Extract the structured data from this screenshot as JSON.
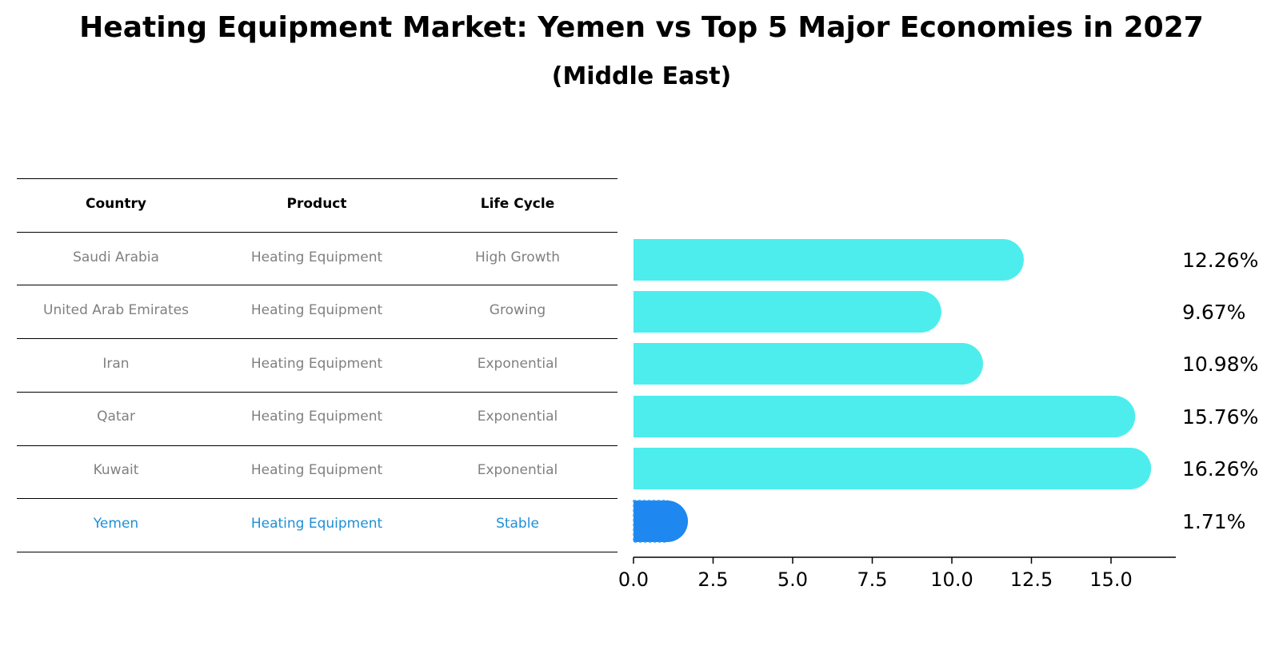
{
  "title": "Heating Equipment Market: Yemen vs Top 5 Major Economies in 2027",
  "subtitle": "(Middle East)",
  "colors": {
    "bar": "#4eeded",
    "highlight_bar": "#1e88f0",
    "highlight_text": "#1f8fd6",
    "muted_text": "#808080"
  },
  "table": {
    "headers": [
      "Country",
      "Product",
      "Life Cycle"
    ],
    "rows": [
      [
        "Saudi Arabia",
        "Heating Equipment",
        "High Growth"
      ],
      [
        "United Arab Emirates",
        "Heating Equipment",
        "Growing"
      ],
      [
        "Iran",
        "Heating Equipment",
        "Exponential"
      ],
      [
        "Qatar",
        "Heating Equipment",
        "Exponential"
      ],
      [
        "Kuwait",
        "Heating Equipment",
        "Exponential"
      ],
      [
        "Yemen",
        "Heating Equipment",
        "Stable"
      ]
    ]
  },
  "chart_data": {
    "type": "bar",
    "orientation": "horizontal",
    "title": "Heating Equipment Market: Yemen vs Top 5 Major Economies in 2027",
    "subtitle": "(Middle East)",
    "categories": [
      "Saudi Arabia",
      "United Arab Emirates",
      "Iran",
      "Qatar",
      "Kuwait",
      "Yemen"
    ],
    "values": [
      12.26,
      9.67,
      10.98,
      15.76,
      16.26,
      1.71
    ],
    "value_labels": [
      "12.26%",
      "9.67%",
      "10.98%",
      "15.76%",
      "16.26%",
      "1.71%"
    ],
    "highlight": "Yemen",
    "xlim": [
      0,
      17.1
    ],
    "xticks": [
      0.0,
      2.5,
      5.0,
      7.5,
      10.0,
      12.5,
      15.0
    ],
    "xtick_labels": [
      "0.0",
      "2.5",
      "5.0",
      "7.5",
      "10.0",
      "12.5",
      "15.0"
    ],
    "xlabel": "",
    "ylabel": "",
    "grid": false
  }
}
